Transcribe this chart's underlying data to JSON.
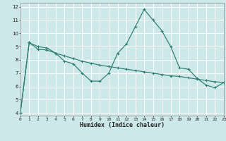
{
  "xlabel": "Humidex (Indice chaleur)",
  "background_color": "#cce8e8",
  "grid_color": "#ffffff",
  "line_color": "#2d7d6e",
  "series1": [
    [
      0,
      4.0
    ],
    [
      1,
      9.3
    ],
    [
      2,
      9.0
    ],
    [
      3,
      8.9
    ],
    [
      4,
      8.5
    ],
    [
      5,
      7.9
    ],
    [
      6,
      7.7
    ],
    [
      7,
      7.0
    ],
    [
      8,
      6.4
    ],
    [
      9,
      6.4
    ],
    [
      10,
      7.0
    ],
    [
      11,
      8.5
    ],
    [
      12,
      9.2
    ],
    [
      13,
      10.5
    ],
    [
      14,
      11.8
    ],
    [
      15,
      11.0
    ],
    [
      16,
      10.2
    ],
    [
      17,
      9.0
    ],
    [
      18,
      7.4
    ],
    [
      19,
      7.3
    ],
    [
      20,
      6.6
    ],
    [
      21,
      6.1
    ],
    [
      22,
      5.9
    ],
    [
      23,
      6.3
    ]
  ],
  "series2": [
    [
      0,
      4.0
    ],
    [
      1,
      9.3
    ],
    [
      2,
      8.8
    ],
    [
      3,
      8.75
    ],
    [
      4,
      8.5
    ],
    [
      5,
      8.3
    ],
    [
      6,
      8.1
    ],
    [
      7,
      7.9
    ],
    [
      8,
      7.75
    ],
    [
      9,
      7.6
    ],
    [
      10,
      7.5
    ],
    [
      11,
      7.4
    ],
    [
      12,
      7.3
    ],
    [
      13,
      7.2
    ],
    [
      14,
      7.1
    ],
    [
      15,
      7.0
    ],
    [
      16,
      6.9
    ],
    [
      17,
      6.8
    ],
    [
      18,
      6.75
    ],
    [
      19,
      6.65
    ],
    [
      20,
      6.55
    ],
    [
      21,
      6.45
    ],
    [
      22,
      6.35
    ],
    [
      23,
      6.3
    ]
  ],
  "xlim": [
    0,
    23
  ],
  "ylim": [
    3.8,
    12.3
  ],
  "yticks": [
    4,
    5,
    6,
    7,
    8,
    9,
    10,
    11,
    12
  ],
  "xticks": [
    0,
    1,
    2,
    3,
    4,
    5,
    6,
    7,
    8,
    9,
    10,
    11,
    12,
    13,
    14,
    15,
    16,
    17,
    18,
    19,
    20,
    21,
    22,
    23
  ]
}
